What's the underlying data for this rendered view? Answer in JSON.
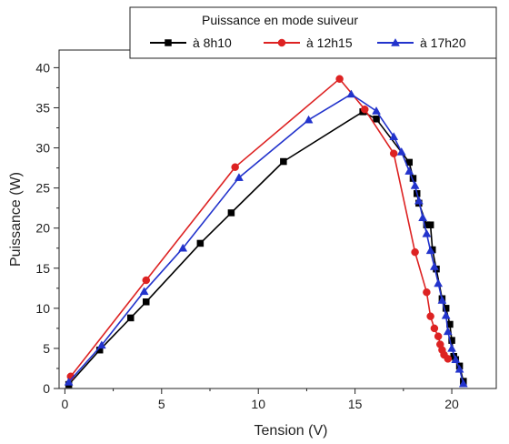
{
  "chart_data": {
    "type": "line",
    "title": "",
    "xlabel": "Tension (V)",
    "ylabel": "Puissance (W)",
    "xlim": [
      -0.3,
      22.3
    ],
    "ylim": [
      0,
      42.2
    ],
    "xticks": [
      0,
      5,
      10,
      15,
      20
    ],
    "yticks": [
      0,
      5,
      10,
      15,
      20,
      25,
      30,
      35,
      40
    ],
    "grid": false,
    "legend": {
      "title": "Puissance en mode suiveur",
      "placement": "top-right"
    },
    "series": [
      {
        "name": "à 8h10",
        "color": "#000000",
        "marker": "square",
        "points": [
          [
            0.2,
            0.5
          ],
          [
            1.8,
            4.8
          ],
          [
            3.4,
            8.8
          ],
          [
            4.2,
            10.8
          ],
          [
            7.0,
            18.1
          ],
          [
            8.6,
            21.9
          ],
          [
            11.3,
            28.3
          ],
          [
            15.4,
            34.5
          ],
          [
            16.1,
            33.6
          ],
          [
            17.8,
            28.2
          ],
          [
            18.0,
            26.2
          ],
          [
            18.2,
            24.3
          ],
          [
            18.3,
            23.1
          ],
          [
            18.7,
            20.4
          ],
          [
            18.9,
            20.4
          ],
          [
            19.0,
            17.3
          ],
          [
            19.2,
            14.9
          ],
          [
            19.5,
            11.2
          ],
          [
            19.7,
            10.0
          ],
          [
            19.9,
            8.0
          ],
          [
            20.0,
            6.0
          ],
          [
            20.1,
            4.0
          ],
          [
            20.2,
            3.6
          ],
          [
            20.4,
            2.8
          ],
          [
            20.6,
            0.9
          ]
        ]
      },
      {
        "name": "à 12h15",
        "color": "#dd2222",
        "marker": "circle",
        "points": [
          [
            0.3,
            1.5
          ],
          [
            4.2,
            13.5
          ],
          [
            8.8,
            27.6
          ],
          [
            14.2,
            38.6
          ],
          [
            15.5,
            34.8
          ],
          [
            17.0,
            29.3
          ],
          [
            18.1,
            17.0
          ],
          [
            18.7,
            12.0
          ],
          [
            18.9,
            9.0
          ],
          [
            19.1,
            7.5
          ],
          [
            19.3,
            6.5
          ],
          [
            19.4,
            5.5
          ],
          [
            19.5,
            4.8
          ],
          [
            19.6,
            4.2
          ],
          [
            19.8,
            3.7
          ]
        ]
      },
      {
        "name": "à 17h20",
        "color": "#2233cc",
        "marker": "triangle",
        "points": [
          [
            0.2,
            0.8
          ],
          [
            1.9,
            5.4
          ],
          [
            4.1,
            12.1
          ],
          [
            6.1,
            17.5
          ],
          [
            9.0,
            26.3
          ],
          [
            12.6,
            33.5
          ],
          [
            14.8,
            36.7
          ],
          [
            16.1,
            34.6
          ],
          [
            17.0,
            31.4
          ],
          [
            17.4,
            29.5
          ],
          [
            17.8,
            27.1
          ],
          [
            18.1,
            25.3
          ],
          [
            18.3,
            23.4
          ],
          [
            18.5,
            21.3
          ],
          [
            18.7,
            19.3
          ],
          [
            18.9,
            17.2
          ],
          [
            19.1,
            15.2
          ],
          [
            19.3,
            13.1
          ],
          [
            19.5,
            11.0
          ],
          [
            19.7,
            9.1
          ],
          [
            19.8,
            7.1
          ],
          [
            20.0,
            5.0
          ],
          [
            20.2,
            3.6
          ],
          [
            20.4,
            2.4
          ],
          [
            20.6,
            0.6
          ]
        ]
      }
    ]
  }
}
